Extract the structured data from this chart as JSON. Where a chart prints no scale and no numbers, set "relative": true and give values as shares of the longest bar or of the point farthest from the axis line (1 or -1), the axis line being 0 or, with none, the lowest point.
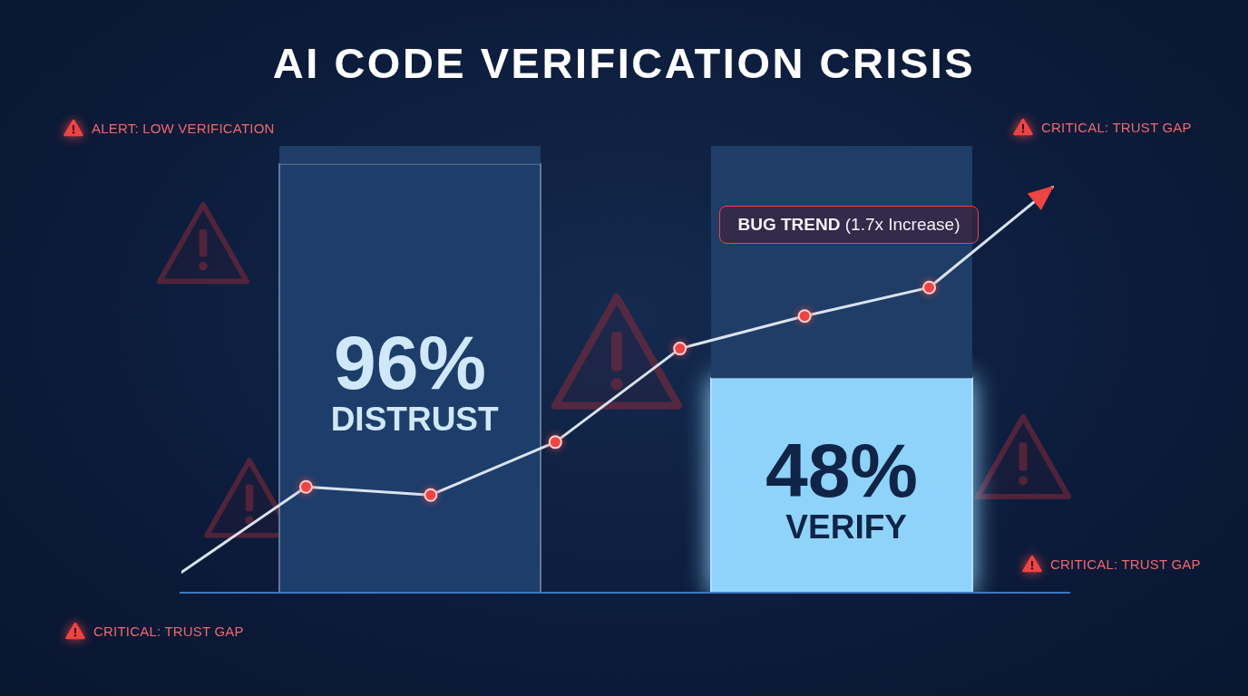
{
  "chart_data": [
    {
      "type": "bar",
      "title": "AI CODE VERIFICATION CRISIS",
      "categories": [
        null,
        null
      ],
      "stacked": true,
      "series": [
        {
          "values": [
            96,
            48
          ],
          "colors": [
            "#1d3d6b",
            "#8fd3fb"
          ],
          "value_labels": [
            "96% DISTRUST",
            "48% VERIFY"
          ]
        },
        {
          "values": [
            4,
            52
          ],
          "color": "#1f3d66"
        }
      ],
      "ylim": [
        0,
        100
      ],
      "tick_labels": false,
      "annotations": [
        "ALERT: LOW VERIFICATION",
        "CRITICAL: TRUST GAP",
        "CRITICAL: TRUST GAP",
        "CRITICAL: TRUST GAP"
      ]
    },
    {
      "type": "line",
      "categories": [
        null,
        null,
        null,
        null,
        null,
        null,
        null,
        null
      ],
      "relative": true,
      "tick_labels": false,
      "marker": "circle",
      "series": [
        {
          "name": "BUG TREND (1.7x Increase)",
          "color": "#d9e3f0",
          "values": [
            0.05,
            0.26,
            0.24,
            0.37,
            0.6,
            0.68,
            0.75,
            1
          ]
        }
      ]
    }
  ]
}
